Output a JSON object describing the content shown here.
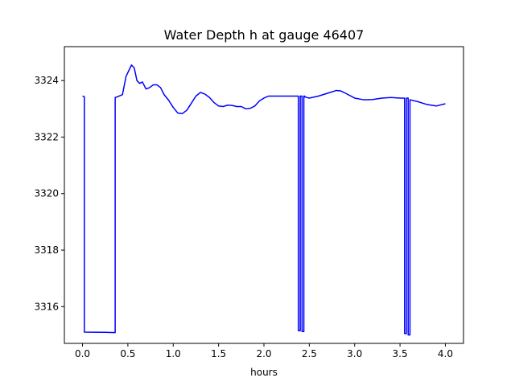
{
  "chart_data": {
    "type": "line",
    "title": "Water Depth h at gauge 46407",
    "xlabel": "hours",
    "ylabel": "",
    "xlim": [
      -0.2,
      4.2
    ],
    "ylim": [
      3314.7,
      3325.2
    ],
    "xticks": [
      0.0,
      0.5,
      1.0,
      1.5,
      2.0,
      2.5,
      3.0,
      3.5,
      4.0
    ],
    "xtick_labels": [
      "0.0",
      "0.5",
      "1.0",
      "1.5",
      "2.0",
      "2.5",
      "3.0",
      "3.5",
      "4.0"
    ],
    "yticks": [
      3316,
      3318,
      3320,
      3322,
      3324
    ],
    "ytick_labels": [
      "3316",
      "3318",
      "3320",
      "3322",
      "3324"
    ],
    "grid": false,
    "series": [
      {
        "color": "#0000ff",
        "x": [
          0.0,
          0.02,
          0.02,
          0.25,
          0.36,
          0.36,
          0.38,
          0.44,
          0.48,
          0.51,
          0.54,
          0.57,
          0.6,
          0.63,
          0.66,
          0.7,
          0.74,
          0.78,
          0.82,
          0.86,
          0.9,
          0.95,
          1.0,
          1.05,
          1.1,
          1.15,
          1.2,
          1.25,
          1.3,
          1.35,
          1.4,
          1.45,
          1.5,
          1.55,
          1.6,
          1.65,
          1.7,
          1.75,
          1.8,
          1.85,
          1.9,
          1.95,
          2.0,
          2.05,
          2.1,
          2.15,
          2.2,
          2.25,
          2.3,
          2.35,
          2.38,
          2.38,
          2.4,
          2.4,
          2.42,
          2.42,
          2.44,
          2.44,
          2.45,
          2.45,
          2.5,
          2.6,
          2.7,
          2.8,
          2.85,
          2.9,
          3.0,
          3.1,
          3.2,
          3.3,
          3.4,
          3.5,
          3.54,
          3.55,
          3.55,
          3.57,
          3.57,
          3.59,
          3.59,
          3.61,
          3.61,
          3.7,
          3.8,
          3.9,
          4.0
        ],
        "y": [
          3323.45,
          3323.43,
          3315.1,
          3315.09,
          3315.08,
          3323.4,
          3323.42,
          3323.5,
          3324.15,
          3324.35,
          3324.55,
          3324.45,
          3324.0,
          3323.9,
          3323.95,
          3323.7,
          3323.75,
          3323.85,
          3323.85,
          3323.75,
          3323.5,
          3323.3,
          3323.05,
          3322.85,
          3322.83,
          3322.95,
          3323.2,
          3323.45,
          3323.58,
          3323.52,
          3323.4,
          3323.22,
          3323.1,
          3323.08,
          3323.13,
          3323.12,
          3323.08,
          3323.08,
          3323.0,
          3323.02,
          3323.1,
          3323.28,
          3323.38,
          3323.45,
          3323.45,
          3323.45,
          3323.45,
          3323.45,
          3323.45,
          3323.45,
          3323.45,
          3315.15,
          3315.15,
          3323.45,
          3323.45,
          3315.12,
          3315.12,
          3323.45,
          3323.45,
          3323.42,
          3323.38,
          3323.45,
          3323.55,
          3323.65,
          3323.63,
          3323.55,
          3323.38,
          3323.32,
          3323.33,
          3323.38,
          3323.4,
          3323.38,
          3323.38,
          3323.38,
          3315.05,
          3315.05,
          3323.38,
          3323.38,
          3315.0,
          3315.0,
          3323.32,
          3323.25,
          3323.15,
          3323.1,
          3323.18
        ]
      }
    ]
  }
}
